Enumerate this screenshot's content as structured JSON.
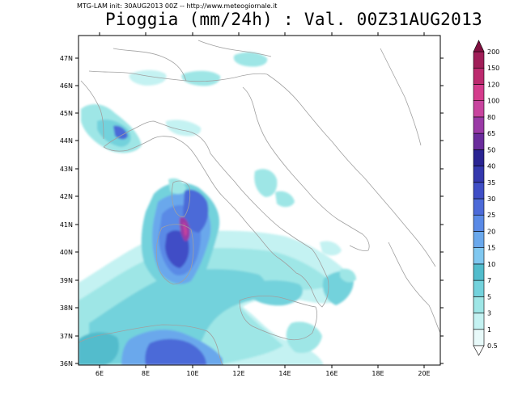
{
  "header": {
    "init_line": "MTG-LAM init: 30AUG2013 00Z -- http://www.meteogiornale.it",
    "title": "Pioggia (mm/24h) : Val. 00Z31AUG2013"
  },
  "axes": {
    "lat_labels": [
      "47N",
      "46N",
      "45N",
      "44N",
      "43N",
      "42N",
      "41N",
      "40N",
      "39N",
      "38N",
      "37N",
      "36N"
    ],
    "lon_labels": [
      "6E",
      "8E",
      "10E",
      "12E",
      "14E",
      "16E",
      "18E",
      "20E"
    ]
  },
  "legend": {
    "levels": [
      "0.5",
      "1",
      "3",
      "5",
      "7",
      "10",
      "15",
      "20",
      "25",
      "30",
      "35",
      "40",
      "50",
      "65",
      "80",
      "100",
      "120",
      "150",
      "200"
    ],
    "colors": [
      "#e8fafa",
      "#c4f2f2",
      "#9ee6e6",
      "#73d2dc",
      "#52bccc",
      "#80c8f0",
      "#6aa8ec",
      "#5a8ae6",
      "#4c6ad8",
      "#3f4ec6",
      "#3438ad",
      "#2a2492",
      "#6a2c9c",
      "#9a3aa6",
      "#c8449e",
      "#d43c8c",
      "#bc2a6e",
      "#a01e58",
      "#801040"
    ]
  }
}
